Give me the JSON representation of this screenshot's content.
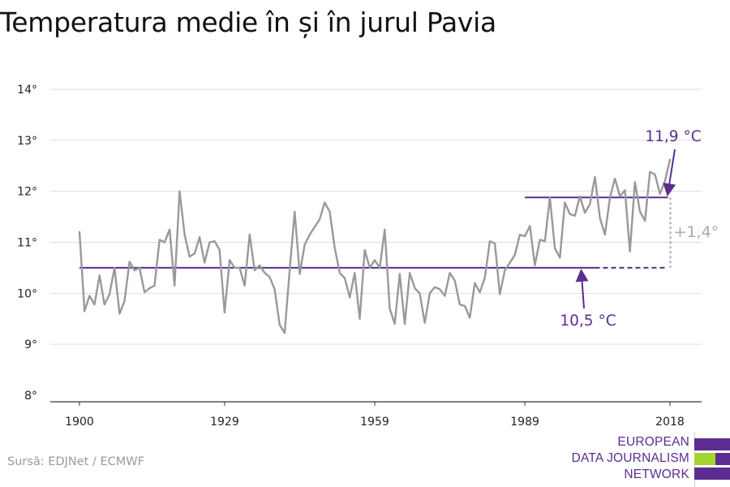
{
  "title": "Temperatura medie în și în jurul Pavia",
  "source": "Sursă: EDJNet / ECMWF",
  "logo": {
    "lines": [
      "EUROPEAN",
      "DATA JOURNALISM",
      "NETWORK"
    ],
    "colors": {
      "purple": "#5c2d91",
      "green": "#a3d52e"
    }
  },
  "chart_data": {
    "type": "line",
    "xlim": [
      1900,
      2018
    ],
    "ylim": [
      8,
      14
    ],
    "x_ticks": [
      1900,
      1929,
      1959,
      1989,
      2018
    ],
    "x_tick_labels": [
      "1900",
      "1929",
      "1959",
      "1989",
      "2018"
    ],
    "y_ticks": [
      8,
      9,
      10,
      11,
      12,
      13,
      14
    ],
    "y_tick_labels": [
      "8°",
      "9°",
      "10°",
      "11°",
      "12°",
      "13°",
      "14°"
    ],
    "grid": true,
    "series": [
      {
        "color": "#999999",
        "x": [
          1900,
          1901,
          1902,
          1903,
          1904,
          1905,
          1906,
          1907,
          1908,
          1909,
          1910,
          1911,
          1912,
          1913,
          1914,
          1915,
          1916,
          1917,
          1918,
          1919,
          1920,
          1921,
          1922,
          1923,
          1924,
          1925,
          1926,
          1927,
          1928,
          1929,
          1930,
          1931,
          1932,
          1933,
          1934,
          1935,
          1936,
          1937,
          1938,
          1939,
          1940,
          1941,
          1942,
          1943,
          1944,
          1945,
          1946,
          1947,
          1948,
          1949,
          1950,
          1951,
          1952,
          1953,
          1954,
          1955,
          1956,
          1957,
          1958,
          1959,
          1960,
          1961,
          1962,
          1963,
          1964,
          1965,
          1966,
          1967,
          1968,
          1969,
          1970,
          1971,
          1972,
          1973,
          1974,
          1975,
          1976,
          1977,
          1978,
          1979,
          1980,
          1981,
          1982,
          1983,
          1984,
          1985,
          1986,
          1987,
          1988,
          1989,
          1990,
          1991,
          1992,
          1993,
          1994,
          1995,
          1996,
          1997,
          1998,
          1999,
          2000,
          2001,
          2002,
          2003,
          2004,
          2005,
          2006,
          2007,
          2008,
          2009,
          2010,
          2011,
          2012,
          2013,
          2014,
          2015,
          2016,
          2017,
          2018
        ],
        "values": [
          11.2,
          9.65,
          9.95,
          9.78,
          10.35,
          9.78,
          9.98,
          10.5,
          9.6,
          9.85,
          10.62,
          10.45,
          10.5,
          10.02,
          10.1,
          10.15,
          11.05,
          11.0,
          11.25,
          10.15,
          12.0,
          11.15,
          10.72,
          10.78,
          11.1,
          10.6,
          11.0,
          11.02,
          10.85,
          9.62,
          10.65,
          10.5,
          10.5,
          10.15,
          11.15,
          10.45,
          10.55,
          10.4,
          10.32,
          10.08,
          9.38,
          9.22,
          10.45,
          11.6,
          10.38,
          10.95,
          11.15,
          11.3,
          11.45,
          11.78,
          11.6,
          10.9,
          10.4,
          10.3,
          9.92,
          10.4,
          9.5,
          10.85,
          10.5,
          10.65,
          10.5,
          11.25,
          9.7,
          9.4,
          10.38,
          9.4,
          10.4,
          10.1,
          10.0,
          9.42,
          10.0,
          10.12,
          10.08,
          9.95,
          10.4,
          10.25,
          9.78,
          9.75,
          9.52,
          10.2,
          10.02,
          10.3,
          11.02,
          10.98,
          9.98,
          10.45,
          10.6,
          10.75,
          11.15,
          11.12,
          11.32,
          10.55,
          11.05,
          11.02,
          11.88,
          10.88,
          10.7,
          11.78,
          11.55,
          11.52,
          11.9,
          11.58,
          11.75,
          12.28,
          11.48,
          11.15,
          11.88,
          12.25,
          11.9,
          12.02,
          10.82,
          12.18,
          11.6,
          11.42,
          12.38,
          12.33,
          11.95,
          12.2,
          12.62
        ]
      }
    ],
    "reference_lines": [
      {
        "label": "10,5 °C",
        "value": 10.5,
        "color": "#5c2d91"
      },
      {
        "label": "11,9 °C",
        "value": 11.88,
        "color": "#5c2d91"
      }
    ],
    "difference_label": "+1,4°",
    "difference_color": "#aaaaaa"
  }
}
